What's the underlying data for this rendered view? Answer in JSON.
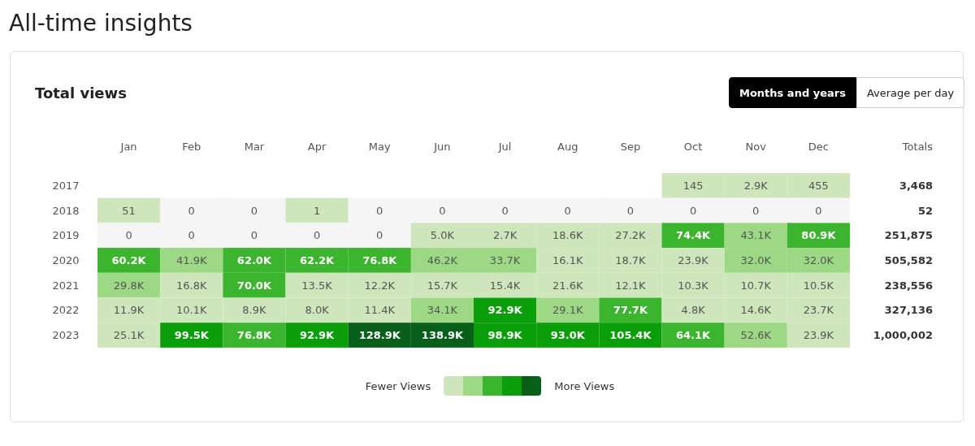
{
  "chart_data": {
    "type": "heatmap",
    "title": "All-time insights",
    "subtitle": "Total views",
    "categories": [
      "Jan",
      "Feb",
      "Mar",
      "Apr",
      "May",
      "Jun",
      "Jul",
      "Aug",
      "Sep",
      "Oct",
      "Nov",
      "Dec"
    ],
    "y_categories": [
      "2017",
      "2018",
      "2019",
      "2020",
      "2021",
      "2022",
      "2023"
    ],
    "y2label": "Totals",
    "y2_categories": [
      "3,468",
      "52",
      "251,875",
      "505,582",
      "238,556",
      "327,136",
      "1,000,002"
    ],
    "cells": [
      [
        null,
        null,
        null,
        null,
        null,
        null,
        null,
        null,
        null,
        145,
        2900,
        455
      ],
      [
        51,
        0,
        0,
        1,
        0,
        0,
        0,
        0,
        0,
        0,
        0,
        0
      ],
      [
        0,
        0,
        0,
        0,
        0,
        5000,
        2700,
        18600,
        27200,
        74400,
        43100,
        80900
      ],
      [
        60200,
        41900,
        62000,
        62200,
        76800,
        46200,
        33700,
        16100,
        18700,
        23900,
        32000,
        32000
      ],
      [
        29800,
        16800,
        70000,
        13500,
        12200,
        15700,
        15400,
        21600,
        12100,
        10300,
        10700,
        10500
      ],
      [
        11900,
        10100,
        8900,
        8000,
        11400,
        34100,
        92900,
        29100,
        77700,
        4800,
        14600,
        23700
      ],
      [
        25100,
        99500,
        76800,
        92900,
        128900,
        138900,
        98900,
        93000,
        105400,
        64100,
        52600,
        23900
      ]
    ],
    "cell_labels": [
      [
        null,
        null,
        null,
        null,
        null,
        null,
        null,
        null,
        null,
        "145",
        "2.9K",
        "455"
      ],
      [
        "51",
        "0",
        "0",
        "1",
        "0",
        "0",
        "0",
        "0",
        "0",
        "0",
        "0",
        "0"
      ],
      [
        "0",
        "0",
        "0",
        "0",
        "0",
        "5.0K",
        "2.7K",
        "18.6K",
        "27.2K",
        "74.4K",
        "43.1K",
        "80.9K"
      ],
      [
        "60.2K",
        "41.9K",
        "62.0K",
        "62.2K",
        "76.8K",
        "46.2K",
        "33.7K",
        "16.1K",
        "18.7K",
        "23.9K",
        "32.0K",
        "32.0K"
      ],
      [
        "29.8K",
        "16.8K",
        "70.0K",
        "13.5K",
        "12.2K",
        "15.7K",
        "15.4K",
        "21.6K",
        "12.1K",
        "10.3K",
        "10.7K",
        "10.5K"
      ],
      [
        "11.9K",
        "10.1K",
        "8.9K",
        "8.0K",
        "11.4K",
        "34.1K",
        "92.9K",
        "29.1K",
        "77.7K",
        "4.8K",
        "14.6K",
        "23.7K"
      ],
      [
        "25.1K",
        "99.5K",
        "76.8K",
        "92.9K",
        "128.9K",
        "138.9K",
        "98.9K",
        "93.0K",
        "105.4K",
        "64.1K",
        "52.6K",
        "23.9K"
      ]
    ],
    "colors": [
      [
        null,
        null,
        null,
        null,
        null,
        null,
        null,
        null,
        null,
        "#cfe5bc",
        "#cfe5bc",
        "#cfe5bc"
      ],
      [
        "#cfe5bc",
        null,
        null,
        "#cfe5bc",
        null,
        null,
        null,
        null,
        null,
        null,
        null,
        null
      ],
      [
        null,
        null,
        null,
        null,
        null,
        "#cfe5bc",
        "#cfe5bc",
        "#cfe5bc",
        "#cfe5bc",
        "#3cb52e",
        "#9dd884",
        "#3cb52e"
      ],
      [
        "#3cb52e",
        "#9dd884",
        "#3cb52e",
        "#3cb52e",
        "#3cb52e",
        "#9dd884",
        "#9dd884",
        "#cfe5bc",
        "#cfe5bc",
        "#cfe5bc",
        "#9dd884",
        "#9dd884"
      ],
      [
        "#9dd884",
        "#cfe5bc",
        "#3cb52e",
        "#cfe5bc",
        "#cfe5bc",
        "#cfe5bc",
        "#cfe5bc",
        "#cfe5bc",
        "#cfe5bc",
        "#cfe5bc",
        "#cfe5bc",
        "#cfe5bc"
      ],
      [
        "#cfe5bc",
        "#cfe5bc",
        "#cfe5bc",
        "#cfe5bc",
        "#cfe5bc",
        "#9dd884",
        "#0b9e0b",
        "#9dd884",
        "#3cb52e",
        "#cfe5bc",
        "#cfe5bc",
        "#cfe5bc"
      ],
      [
        "#cfe5bc",
        "#0b9e0b",
        "#3cb52e",
        "#0b9e0b",
        "#075f1a",
        "#075f1a",
        "#0b9e0b",
        "#0b9e0b",
        "#0b9e0b",
        "#3cb52e",
        "#9dd884",
        "#cfe5bc"
      ]
    ],
    "annotations": [
      "Months and years",
      "Average per day",
      "Fewer Views",
      "More Views"
    ]
  }
}
